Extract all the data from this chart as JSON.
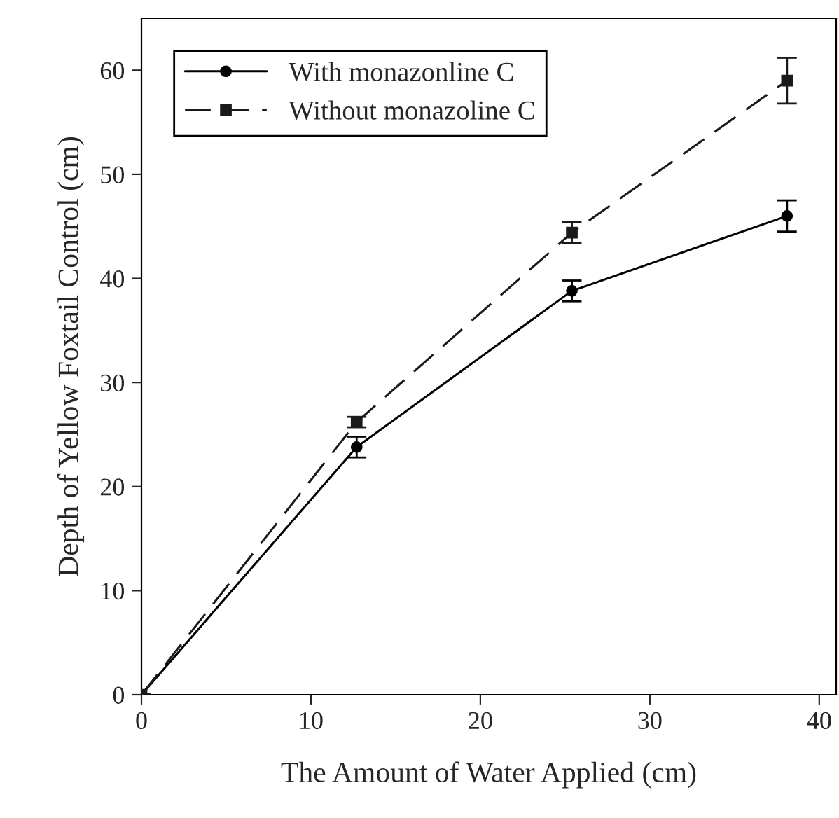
{
  "chart_data": {
    "type": "line",
    "xlabel": "The Amount of Water Applied (cm)",
    "ylabel": "Depth of Yellow Foxtail Control (cm)",
    "x": [
      0,
      12.7,
      25.4,
      38.1
    ],
    "series": [
      {
        "name": "With monazonline C",
        "color": "#000000",
        "values": [
          0,
          23.8,
          38.8,
          46.0
        ],
        "errors": [
          null,
          1.0,
          1.0,
          1.5
        ],
        "marker": "circle",
        "line_style": "solid"
      },
      {
        "name": "Without monazoline C",
        "color": "#1a1a1a",
        "values": [
          0,
          26.2,
          44.4,
          59.0
        ],
        "errors": [
          null,
          0.5,
          1.0,
          2.2
        ],
        "marker": "square",
        "line_style": "dashed"
      }
    ],
    "xlim": [
      0,
      41
    ],
    "xticks": [
      0,
      10,
      20,
      30,
      40
    ],
    "ylim": [
      0,
      65
    ],
    "yticks": [
      0,
      10,
      20,
      30,
      40,
      50,
      60
    ],
    "grid": false,
    "legend": "top left"
  }
}
